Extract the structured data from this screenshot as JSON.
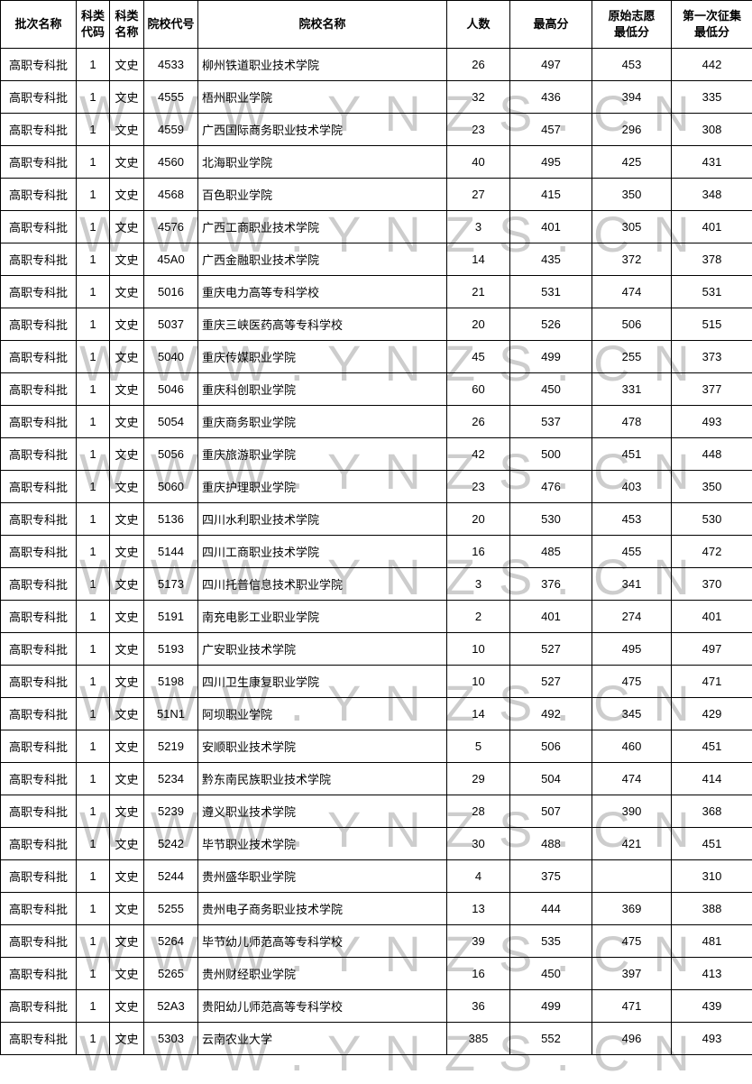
{
  "watermark": {
    "text": "WWW.YNZS.CN",
    "color": "#cdcdcd"
  },
  "table": {
    "headers": [
      "批次名称",
      "科类\n代码",
      "科类\n名称",
      "院校代号",
      "院校名称",
      "人数",
      "最高分",
      "原始志愿\n最低分",
      "第一次征集\n最低分"
    ],
    "col_keys": [
      "batch-name",
      "category-code",
      "category-name",
      "college-code",
      "college-name",
      "count",
      "max-score",
      "original-volunteer-min",
      "first-collection-min"
    ],
    "rows": [
      [
        "高职专科批",
        "1",
        "文史",
        "4533",
        "柳州铁道职业技术学院",
        "26",
        "497",
        "453",
        "442"
      ],
      [
        "高职专科批",
        "1",
        "文史",
        "4555",
        "梧州职业学院",
        "32",
        "436",
        "394",
        "335"
      ],
      [
        "高职专科批",
        "1",
        "文史",
        "4559",
        "广西国际商务职业技术学院",
        "23",
        "457",
        "296",
        "308"
      ],
      [
        "高职专科批",
        "1",
        "文史",
        "4560",
        "北海职业学院",
        "40",
        "495",
        "425",
        "431"
      ],
      [
        "高职专科批",
        "1",
        "文史",
        "4568",
        "百色职业学院",
        "27",
        "415",
        "350",
        "348"
      ],
      [
        "高职专科批",
        "1",
        "文史",
        "4576",
        "广西工商职业技术学院",
        "3",
        "401",
        "305",
        "401"
      ],
      [
        "高职专科批",
        "1",
        "文史",
        "45A0",
        "广西金融职业技术学院",
        "14",
        "435",
        "372",
        "378"
      ],
      [
        "高职专科批",
        "1",
        "文史",
        "5016",
        "重庆电力高等专科学校",
        "21",
        "531",
        "474",
        "531"
      ],
      [
        "高职专科批",
        "1",
        "文史",
        "5037",
        "重庆三峡医药高等专科学校",
        "20",
        "526",
        "506",
        "515"
      ],
      [
        "高职专科批",
        "1",
        "文史",
        "5040",
        "重庆传媒职业学院",
        "45",
        "499",
        "255",
        "373"
      ],
      [
        "高职专科批",
        "1",
        "文史",
        "5046",
        "重庆科创职业学院",
        "60",
        "450",
        "331",
        "377"
      ],
      [
        "高职专科批",
        "1",
        "文史",
        "5054",
        "重庆商务职业学院",
        "26",
        "537",
        "478",
        "493"
      ],
      [
        "高职专科批",
        "1",
        "文史",
        "5056",
        "重庆旅游职业学院",
        "42",
        "500",
        "451",
        "448"
      ],
      [
        "高职专科批",
        "1",
        "文史",
        "5060",
        "重庆护理职业学院",
        "23",
        "476",
        "403",
        "350"
      ],
      [
        "高职专科批",
        "1",
        "文史",
        "5136",
        "四川水利职业技术学院",
        "20",
        "530",
        "453",
        "530"
      ],
      [
        "高职专科批",
        "1",
        "文史",
        "5144",
        "四川工商职业技术学院",
        "16",
        "485",
        "455",
        "472"
      ],
      [
        "高职专科批",
        "1",
        "文史",
        "5173",
        "四川托普信息技术职业学院",
        "3",
        "376",
        "341",
        "370"
      ],
      [
        "高职专科批",
        "1",
        "文史",
        "5191",
        "南充电影工业职业学院",
        "2",
        "401",
        "274",
        "401"
      ],
      [
        "高职专科批",
        "1",
        "文史",
        "5193",
        "广安职业技术学院",
        "10",
        "527",
        "495",
        "497"
      ],
      [
        "高职专科批",
        "1",
        "文史",
        "5198",
        "四川卫生康复职业学院",
        "10",
        "527",
        "475",
        "471"
      ],
      [
        "高职专科批",
        "1",
        "文史",
        "51N1",
        "阿坝职业学院",
        "14",
        "492",
        "345",
        "429"
      ],
      [
        "高职专科批",
        "1",
        "文史",
        "5219",
        "安顺职业技术学院",
        "5",
        "506",
        "460",
        "451"
      ],
      [
        "高职专科批",
        "1",
        "文史",
        "5234",
        "黔东南民族职业技术学院",
        "29",
        "504",
        "474",
        "414"
      ],
      [
        "高职专科批",
        "1",
        "文史",
        "5239",
        "遵义职业技术学院",
        "28",
        "507",
        "390",
        "368"
      ],
      [
        "高职专科批",
        "1",
        "文史",
        "5242",
        "毕节职业技术学院",
        "30",
        "488",
        "421",
        "451"
      ],
      [
        "高职专科批",
        "1",
        "文史",
        "5244",
        "贵州盛华职业学院",
        "4",
        "375",
        "",
        "310"
      ],
      [
        "高职专科批",
        "1",
        "文史",
        "5255",
        "贵州电子商务职业技术学院",
        "13",
        "444",
        "369",
        "388"
      ],
      [
        "高职专科批",
        "1",
        "文史",
        "5264",
        "毕节幼儿师范高等专科学校",
        "39",
        "535",
        "475",
        "481"
      ],
      [
        "高职专科批",
        "1",
        "文史",
        "5265",
        "贵州财经职业学院",
        "16",
        "450",
        "397",
        "413"
      ],
      [
        "高职专科批",
        "1",
        "文史",
        "52A3",
        "贵阳幼儿师范高等专科学校",
        "36",
        "499",
        "471",
        "439"
      ],
      [
        "高职专科批",
        "1",
        "文史",
        "5303",
        "云南农业大学",
        "385",
        "552",
        "496",
        "493"
      ]
    ]
  }
}
